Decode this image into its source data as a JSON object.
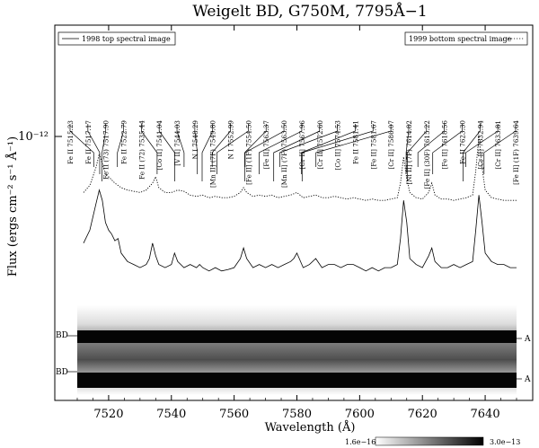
{
  "chart_data": {
    "type": "line",
    "title": "Weigelt BD, G750M, 7795Å−1",
    "xlabel": "Wavelength (Å)",
    "ylabel": "Flux (ergs cm⁻² s⁻¹ Å⁻¹)",
    "xlim": [
      7506,
      7654
    ],
    "x_ticks": [
      7520,
      7540,
      7560,
      7580,
      7600,
      7620,
      7640
    ],
    "y_scale": "log",
    "y_tick_label": "10⁻¹²",
    "grid": false,
    "legend": [
      {
        "label": "1998 top spectral image",
        "style": "solid",
        "position": "top-left"
      },
      {
        "label": "1999 bottom spectral image",
        "style": "dotted",
        "position": "top-right"
      }
    ],
    "line_labels": [
      {
        "text": "Fe II 7515.23",
        "wavelength": 7515.23
      },
      {
        "text": "Fe II 7517.17",
        "wavelength": 7517.17
      },
      {
        "text": "Fe II (73) 7517.90",
        "wavelength": 7517.9
      },
      {
        "text": "Fe II 7522.79",
        "wavelength": 7522.79
      },
      {
        "text": "Fe II (72) 7535.44",
        "wavelength": 7535.44
      },
      {
        "text": "[Co II] 7541.04",
        "wavelength": 7541.04
      },
      {
        "text": "[V II] 7544.03",
        "wavelength": 7544.03
      },
      {
        "text": "N I 7548.29",
        "wavelength": 7548.29
      },
      {
        "text": "[Mn II] (7F) 7549.80",
        "wavelength": 7549.8
      },
      {
        "text": "N I 7552.99",
        "wavelength": 7552.99
      },
      {
        "text": "[Fe II] (1F) 7554.50",
        "wavelength": 7554.5
      },
      {
        "text": "[Fe II] 7563.37",
        "wavelength": 7563.37
      },
      {
        "text": "[Mn II] (7F) 7563.50",
        "wavelength": 7563.5
      },
      {
        "text": "[Cr II] 7567.96",
        "wavelength": 7567.96
      },
      {
        "text": "[Cr II] 7572.60",
        "wavelength": 7572.6
      },
      {
        "text": "[Co II] 7574.53",
        "wavelength": 7574.53
      },
      {
        "text": "Fe II 7581.41",
        "wavelength": 7581.41
      },
      {
        "text": "[Fe II] 7581.67",
        "wavelength": 7581.67
      },
      {
        "text": "[Cr II] 7586.07",
        "wavelength": 7586.07
      },
      {
        "text": "[Ni II] (7F) 7614.82",
        "wavelength": 7614.82
      },
      {
        "text": "[Fe II] (30F) 7615.22",
        "wavelength": 7615.22
      },
      {
        "text": "[Fe II] 7618.56",
        "wavelength": 7618.56
      },
      {
        "text": "Fe II 7623.30",
        "wavelength": 7623.3
      },
      {
        "text": "[Cr II] 7632.94",
        "wavelength": 7632.94
      },
      {
        "text": "[Cr II] 7633.81",
        "wavelength": 7633.81
      },
      {
        "text": "[Fe II] (1F) 7639.64",
        "wavelength": 7639.64
      }
    ],
    "series": [
      {
        "name": "1998 top spectral image",
        "style": "solid",
        "x": [
          7512,
          7514,
          7516,
          7517,
          7518,
          7519,
          7520,
          7521,
          7522,
          7523,
          7524,
          7526,
          7528,
          7530,
          7532,
          7533,
          7534,
          7535,
          7536,
          7538,
          7540,
          7541,
          7542,
          7544,
          7546,
          7548,
          7549,
          7550,
          7552,
          7554,
          7556,
          7558,
          7560,
          7562,
          7563,
          7564,
          7566,
          7568,
          7570,
          7572,
          7574,
          7576,
          7578,
          7579,
          7580,
          7582,
          7584,
          7586,
          7588,
          7590,
          7592,
          7594,
          7596,
          7598,
          7600,
          7602,
          7604,
          7606,
          7608,
          7610,
          7612,
          7613,
          7614,
          7615,
          7616,
          7618,
          7620,
          7622,
          7623,
          7624,
          7626,
          7628,
          7630,
          7632,
          7634,
          7636,
          7637,
          7638,
          7639,
          7640,
          7642,
          7644,
          7646,
          7648,
          7650
        ],
        "y": [
          1.7,
          2.0,
          2.8,
          3.3,
          2.9,
          2.2,
          2.0,
          1.9,
          1.75,
          1.8,
          1.5,
          1.35,
          1.3,
          1.25,
          1.3,
          1.4,
          1.7,
          1.45,
          1.3,
          1.25,
          1.3,
          1.5,
          1.35,
          1.25,
          1.3,
          1.25,
          1.3,
          1.25,
          1.2,
          1.25,
          1.2,
          1.22,
          1.25,
          1.4,
          1.6,
          1.4,
          1.25,
          1.3,
          1.25,
          1.3,
          1.25,
          1.3,
          1.35,
          1.4,
          1.5,
          1.25,
          1.3,
          1.4,
          1.25,
          1.3,
          1.3,
          1.25,
          1.3,
          1.3,
          1.25,
          1.2,
          1.25,
          1.2,
          1.25,
          1.25,
          1.3,
          1.8,
          2.9,
          2.2,
          1.4,
          1.3,
          1.25,
          1.45,
          1.6,
          1.35,
          1.25,
          1.25,
          1.3,
          1.25,
          1.3,
          1.35,
          2.0,
          3.1,
          2.2,
          1.5,
          1.35,
          1.3,
          1.3,
          1.25,
          1.25
        ]
      },
      {
        "name": "1999 bottom spectral image",
        "style": "dotted",
        "x": [
          7512,
          7514,
          7516,
          7517,
          7518,
          7519,
          7520,
          7522,
          7524,
          7526,
          7528,
          7530,
          7532,
          7534,
          7535,
          7536,
          7538,
          7540,
          7542,
          7544,
          7546,
          7548,
          7550,
          7552,
          7554,
          7556,
          7558,
          7560,
          7562,
          7563,
          7564,
          7566,
          7568,
          7570,
          7572,
          7574,
          7576,
          7578,
          7580,
          7582,
          7584,
          7586,
          7588,
          7590,
          7592,
          7594,
          7596,
          7598,
          7600,
          7602,
          7604,
          7606,
          7608,
          7610,
          7612,
          7613,
          7614,
          7615,
          7616,
          7618,
          7620,
          7622,
          7623,
          7624,
          7626,
          7628,
          7630,
          7632,
          7634,
          7636,
          7637,
          7638,
          7639,
          7640,
          7642,
          7644,
          7646,
          7648,
          7650
        ],
        "y": [
          3.2,
          3.5,
          4.4,
          5.2,
          4.6,
          4.0,
          3.9,
          3.6,
          3.4,
          3.3,
          3.25,
          3.2,
          3.3,
          3.6,
          3.9,
          3.4,
          3.2,
          3.2,
          3.3,
          3.25,
          3.1,
          3.05,
          3.1,
          3.0,
          3.05,
          3.0,
          3.0,
          3.05,
          3.2,
          3.4,
          3.2,
          3.05,
          3.1,
          3.05,
          3.1,
          3.0,
          3.05,
          3.1,
          3.2,
          3.0,
          3.05,
          3.1,
          3.0,
          3.0,
          3.05,
          3.0,
          2.95,
          3.0,
          2.95,
          2.9,
          2.95,
          2.9,
          2.9,
          2.95,
          3.0,
          3.6,
          5.0,
          3.8,
          3.2,
          3.0,
          2.95,
          3.2,
          3.6,
          3.1,
          2.95,
          2.95,
          2.9,
          2.95,
          3.0,
          3.1,
          4.2,
          6.5,
          4.4,
          3.3,
          3.0,
          2.95,
          2.9,
          2.9,
          2.9
        ]
      }
    ],
    "spectral_images": [
      {
        "left_label": "BD",
        "right_label": "A"
      },
      {
        "left_label": "BD",
        "right_label": "A"
      }
    ],
    "colorbar": {
      "min_label": "1.6e−16",
      "max_label": "3.0e−13"
    }
  }
}
